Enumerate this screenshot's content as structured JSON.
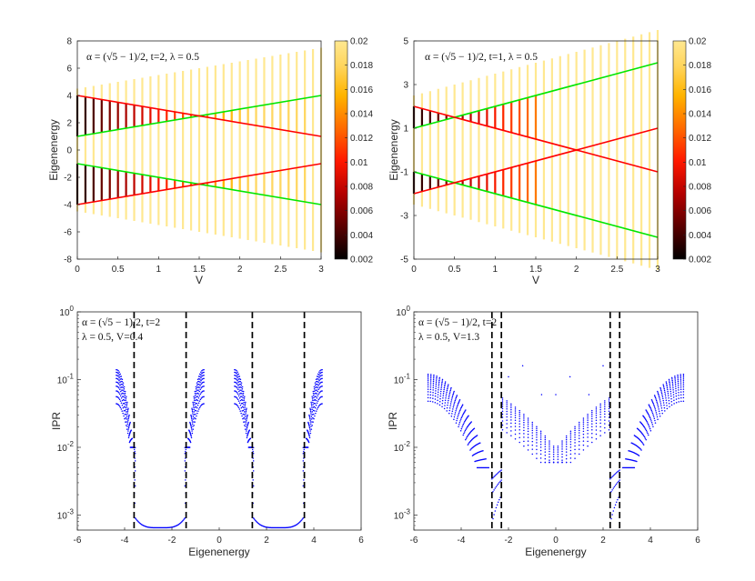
{
  "figure": {
    "description_panels": 4
  },
  "colors": {
    "green": "#00e600",
    "red": "#ff0000",
    "black": "#000000",
    "blue": "#0000ff",
    "axis": "#262626",
    "colormap": [
      "#000000",
      "#5a0000",
      "#b40000",
      "#ff1800",
      "#ff6a00",
      "#ffb400",
      "#ffd45a",
      "#ffe890"
    ]
  },
  "chart_data": [
    {
      "type": "spectrum",
      "panel": "top-left",
      "annotation": "α = (√5 − 1)/2, t=2, λ = 0.5",
      "xlabel": "V",
      "ylabel": "Eigenenergy",
      "xlim": [
        0,
        3
      ],
      "ylim": [
        -8,
        8
      ],
      "xticks": [
        0,
        0.5,
        1,
        1.5,
        2,
        2.5,
        3
      ],
      "yticks": [
        -8,
        -6,
        -4,
        -2,
        0,
        2,
        4,
        6,
        8
      ],
      "colorbar": {
        "range": [
          0.002,
          0.02
        ],
        "ticks": [
          "0.02",
          "0.018",
          "0.016",
          "0.014",
          "0.012",
          "0.01",
          "0.008",
          "0.006",
          "0.004",
          "0.002"
        ]
      },
      "t": 2,
      "lambda": 0.5,
      "lines": [
        {
          "color": "green",
          "x": [
            0,
            3
          ],
          "y": [
            1,
            4
          ]
        },
        {
          "color": "green",
          "x": [
            0,
            3
          ],
          "y": [
            -1,
            -4
          ]
        },
        {
          "color": "red",
          "x": [
            0,
            3
          ],
          "y": [
            4,
            1
          ]
        },
        {
          "color": "red",
          "x": [
            0,
            3
          ],
          "y": [
            -4,
            -1
          ]
        }
      ]
    },
    {
      "type": "spectrum",
      "panel": "top-right",
      "annotation": "α = (√5 − 1)/2, t=1, λ = 0.5",
      "xlabel": "V",
      "ylabel": "Eigenenergy",
      "xlim": [
        0,
        3
      ],
      "ylim": [
        -5,
        5
      ],
      "xticks": [
        0,
        0.5,
        1,
        1.5,
        2,
        2.5,
        3
      ],
      "yticks": [
        -5,
        -3,
        -1,
        1,
        3,
        5
      ],
      "colorbar": {
        "range": [
          0.002,
          0.02
        ],
        "ticks": [
          "0.02",
          "0.018",
          "0.016",
          "0.014",
          "0.012",
          "0.01",
          "0.008",
          "0.006",
          "0.004",
          "0.002"
        ]
      },
      "t": 1,
      "lambda": 0.5,
      "lines": [
        {
          "color": "green",
          "x": [
            0,
            3
          ],
          "y": [
            1,
            4
          ]
        },
        {
          "color": "green",
          "x": [
            0,
            3
          ],
          "y": [
            -1,
            -4
          ]
        },
        {
          "color": "red",
          "x": [
            0,
            3
          ],
          "y": [
            2,
            -1
          ]
        },
        {
          "color": "red",
          "x": [
            0,
            3
          ],
          "y": [
            -2,
            1
          ]
        }
      ]
    },
    {
      "type": "scatter",
      "panel": "bottom-left",
      "annotation_line1": "α = (√5 − 1)/2, t=2",
      "annotation_line2": "λ = 0.5, V=0.4",
      "xlabel": "Eigenenergy",
      "ylabel": "IPR",
      "yscale": "log",
      "xlim": [
        -6,
        6
      ],
      "ylim": [
        0.0006,
        1
      ],
      "xticks": [
        -6,
        -4,
        -2,
        0,
        2,
        4,
        6
      ],
      "yticks": [
        "10^0",
        "10^-1",
        "10^-2",
        "10^-3"
      ],
      "V": 0.4,
      "edges": [
        -3.6,
        -1.4,
        1.4,
        3.6
      ],
      "vlines": [
        -3.6,
        -1.4,
        1.4,
        3.6
      ]
    },
    {
      "type": "scatter",
      "panel": "bottom-right",
      "annotation_line1": "α = (√5 − 1)/2, t=2",
      "annotation_line2": "λ = 0.5, V=1.3",
      "xlabel": "Eigenenergy",
      "ylabel": "IPR",
      "yscale": "log",
      "xlim": [
        -6,
        6
      ],
      "ylim": [
        0.0006,
        1
      ],
      "xticks": [
        -6,
        -4,
        -2,
        0,
        2,
        4,
        6
      ],
      "yticks": [
        "10^0",
        "10^-1",
        "10^-2",
        "10^-3"
      ],
      "V": 1.3,
      "edges": [
        -2.7,
        -2.3,
        2.3,
        2.7
      ],
      "vlines": [
        -2.7,
        -2.3,
        2.3,
        2.7
      ]
    }
  ]
}
